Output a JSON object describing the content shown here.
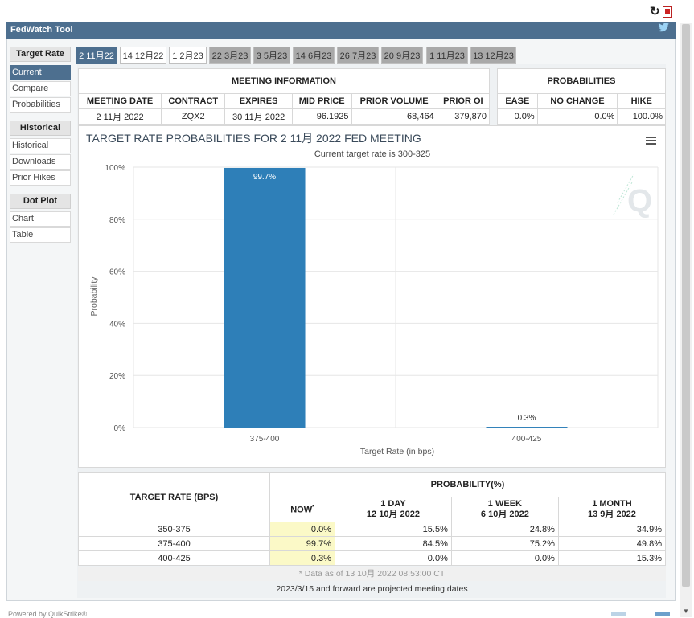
{
  "app": {
    "title": "FedWatch Tool",
    "powered_by": "Powered by QuikStrike®"
  },
  "sidebar": {
    "groups": [
      {
        "header": "Target Rate",
        "items": [
          "Current",
          "Compare",
          "Probabilities"
        ]
      },
      {
        "header": "Historical",
        "items": [
          "Historical",
          "Downloads",
          "Prior Hikes"
        ]
      },
      {
        "header": "Dot Plot",
        "items": [
          "Chart",
          "Table"
        ]
      }
    ]
  },
  "tabs": [
    "2 11月22",
    "14 12月22",
    "1 2月23",
    "22 3月23",
    "3 5月23",
    "14 6月23",
    "26 7月23",
    "20 9月23",
    "1 11月23",
    "13 12月23"
  ],
  "meeting": {
    "section_title": "MEETING INFORMATION",
    "headers": [
      "MEETING DATE",
      "CONTRACT",
      "EXPIRES",
      "MID PRICE",
      "PRIOR VOLUME",
      "PRIOR OI"
    ],
    "row": [
      "2 11月 2022",
      "ZQX2",
      "30 11月 2022",
      "96.1925",
      "68,464",
      "379,870"
    ]
  },
  "probabilities": {
    "section_title": "PROBABILITIES",
    "headers": [
      "EASE",
      "NO CHANGE",
      "HIKE"
    ],
    "row": [
      "0.0%",
      "0.0%",
      "100.0%"
    ]
  },
  "chart_data": {
    "type": "bar",
    "title": "TARGET RATE PROBABILITIES FOR 2 11月 2022 FED MEETING",
    "subtitle": "Current target rate is 300-325",
    "categories": [
      "375-400",
      "400-425"
    ],
    "values": [
      99.7,
      0.3
    ],
    "data_labels": [
      "99.7%",
      "0.3%"
    ],
    "xlabel": "Target Rate (in bps)",
    "ylabel": "Probability",
    "ylim": [
      0,
      100
    ],
    "yticks": [
      "0%",
      "20%",
      "40%",
      "60%",
      "80%",
      "100%"
    ],
    "grid": true,
    "bar_color": "#2e7fb8"
  },
  "bottom": {
    "target_header": "TARGET RATE (BPS)",
    "prob_header": "PROBABILITY(%)",
    "col_now": "NOW",
    "col_now_mark": "*",
    "cols": [
      {
        "l1": "1 DAY",
        "l2": "12 10月 2022"
      },
      {
        "l1": "1 WEEK",
        "l2": "6 10月 2022"
      },
      {
        "l1": "1 MONTH",
        "l2": "13 9月 2022"
      }
    ],
    "rows": [
      [
        "350-375",
        "0.0%",
        "15.5%",
        "24.8%",
        "34.9%"
      ],
      [
        "375-400",
        "99.7%",
        "84.5%",
        "75.2%",
        "49.8%"
      ],
      [
        "400-425",
        "0.3%",
        "0.0%",
        "0.0%",
        "15.3%"
      ]
    ],
    "data_note": "* Data as of 13 10月 2022 08:53:00 CT",
    "projected_note": "2023/3/15 and forward are projected meeting dates"
  },
  "colors": {
    "accent": "#4d6f8f",
    "bar": "#2e7fb8",
    "highlight": "#fbf9c7"
  },
  "icons": [
    "refresh-icon",
    "pdf-icon",
    "twitter-icon",
    "menu-icon",
    "quikstrike-logo-icon"
  ]
}
